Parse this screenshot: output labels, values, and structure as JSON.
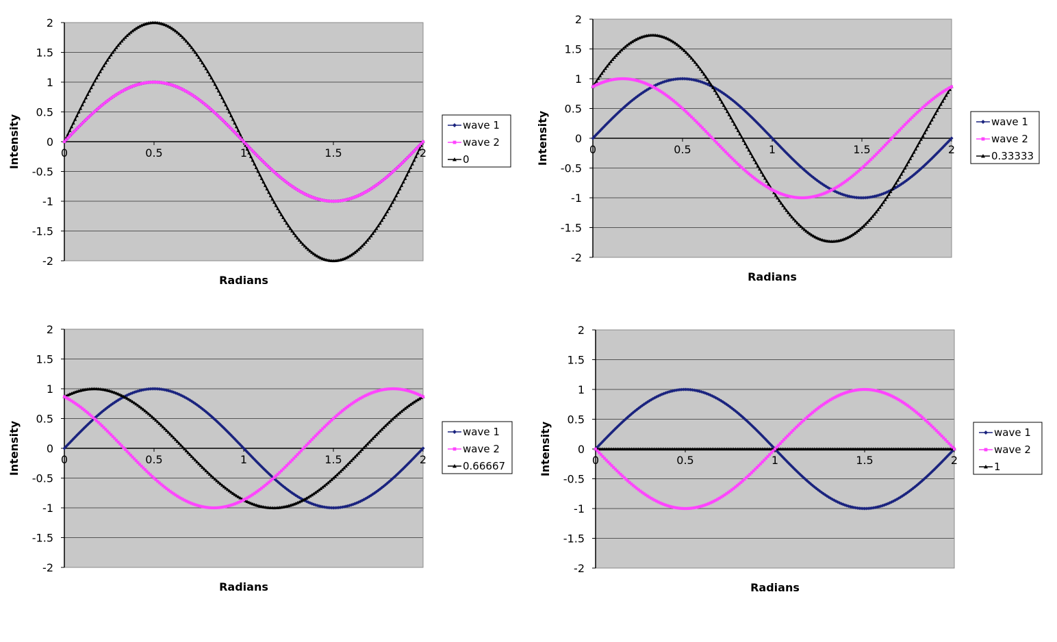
{
  "chart_data": [
    {
      "type": "line",
      "xlabel": "Radians",
      "ylabel": "Intensity",
      "xlim": [
        0,
        2
      ],
      "ylim": [
        -2,
        2
      ],
      "x_ticks": [
        "0",
        "0.5",
        "1",
        "1.5",
        "2"
      ],
      "y_ticks": [
        "2",
        "1.5",
        "1",
        "0.5",
        "0",
        "-0.5",
        "-1",
        "-1.5",
        "-2"
      ],
      "grid": true,
      "legend_position": "right",
      "phase_shift": 0,
      "series": [
        {
          "name": "wave 1",
          "color": "#1a237e",
          "marker": "diamond"
        },
        {
          "name": "wave 2",
          "color": "#ff44ff",
          "marker": "square"
        },
        {
          "name": "0",
          "color": "#000000",
          "marker": "triangle"
        }
      ]
    },
    {
      "type": "line",
      "xlabel": "Radians",
      "ylabel": "Intensity",
      "xlim": [
        0,
        2
      ],
      "ylim": [
        -2,
        2
      ],
      "x_ticks": [
        "0",
        "0.5",
        "1",
        "1.5",
        "2"
      ],
      "y_ticks": [
        "2",
        "1.5",
        "1",
        "0.5",
        "0",
        "-0.5",
        "-1",
        "-1.5",
        "-2"
      ],
      "grid": true,
      "legend_position": "right",
      "phase_shift": 0.33333,
      "series": [
        {
          "name": "wave 1",
          "color": "#1a237e",
          "marker": "diamond"
        },
        {
          "name": "wave 2",
          "color": "#ff44ff",
          "marker": "square"
        },
        {
          "name": "0.33333",
          "color": "#000000",
          "marker": "triangle"
        }
      ]
    },
    {
      "type": "line",
      "xlabel": "Radians",
      "ylabel": "Intensity",
      "xlim": [
        0,
        2
      ],
      "ylim": [
        -2,
        2
      ],
      "x_ticks": [
        "0",
        "0.5",
        "1",
        "1.5",
        "2"
      ],
      "y_ticks": [
        "2",
        "1.5",
        "1",
        "0.5",
        "0",
        "-0.5",
        "-1",
        "-1.5",
        "-2"
      ],
      "grid": true,
      "legend_position": "right",
      "phase_shift": 0.66667,
      "series": [
        {
          "name": "wave 1",
          "color": "#1a237e",
          "marker": "diamond"
        },
        {
          "name": "wave 2",
          "color": "#ff44ff",
          "marker": "square"
        },
        {
          "name": "0.66667",
          "color": "#000000",
          "marker": "triangle"
        }
      ]
    },
    {
      "type": "line",
      "xlabel": "Radians",
      "ylabel": "Intensity",
      "xlim": [
        0,
        2
      ],
      "ylim": [
        -2,
        2
      ],
      "x_ticks": [
        "0",
        "0.5",
        "1",
        "1.5",
        "2"
      ],
      "y_ticks": [
        "2",
        "1.5",
        "1",
        "0.5",
        "0",
        "-0.5",
        "-1",
        "-1.5",
        "-2"
      ],
      "grid": true,
      "legend_position": "right",
      "phase_shift": 1,
      "series": [
        {
          "name": "wave 1",
          "color": "#1a237e",
          "marker": "diamond"
        },
        {
          "name": "wave 2",
          "color": "#ff44ff",
          "marker": "square"
        },
        {
          "name": "1",
          "color": "#000000",
          "marker": "triangle"
        }
      ]
    }
  ]
}
